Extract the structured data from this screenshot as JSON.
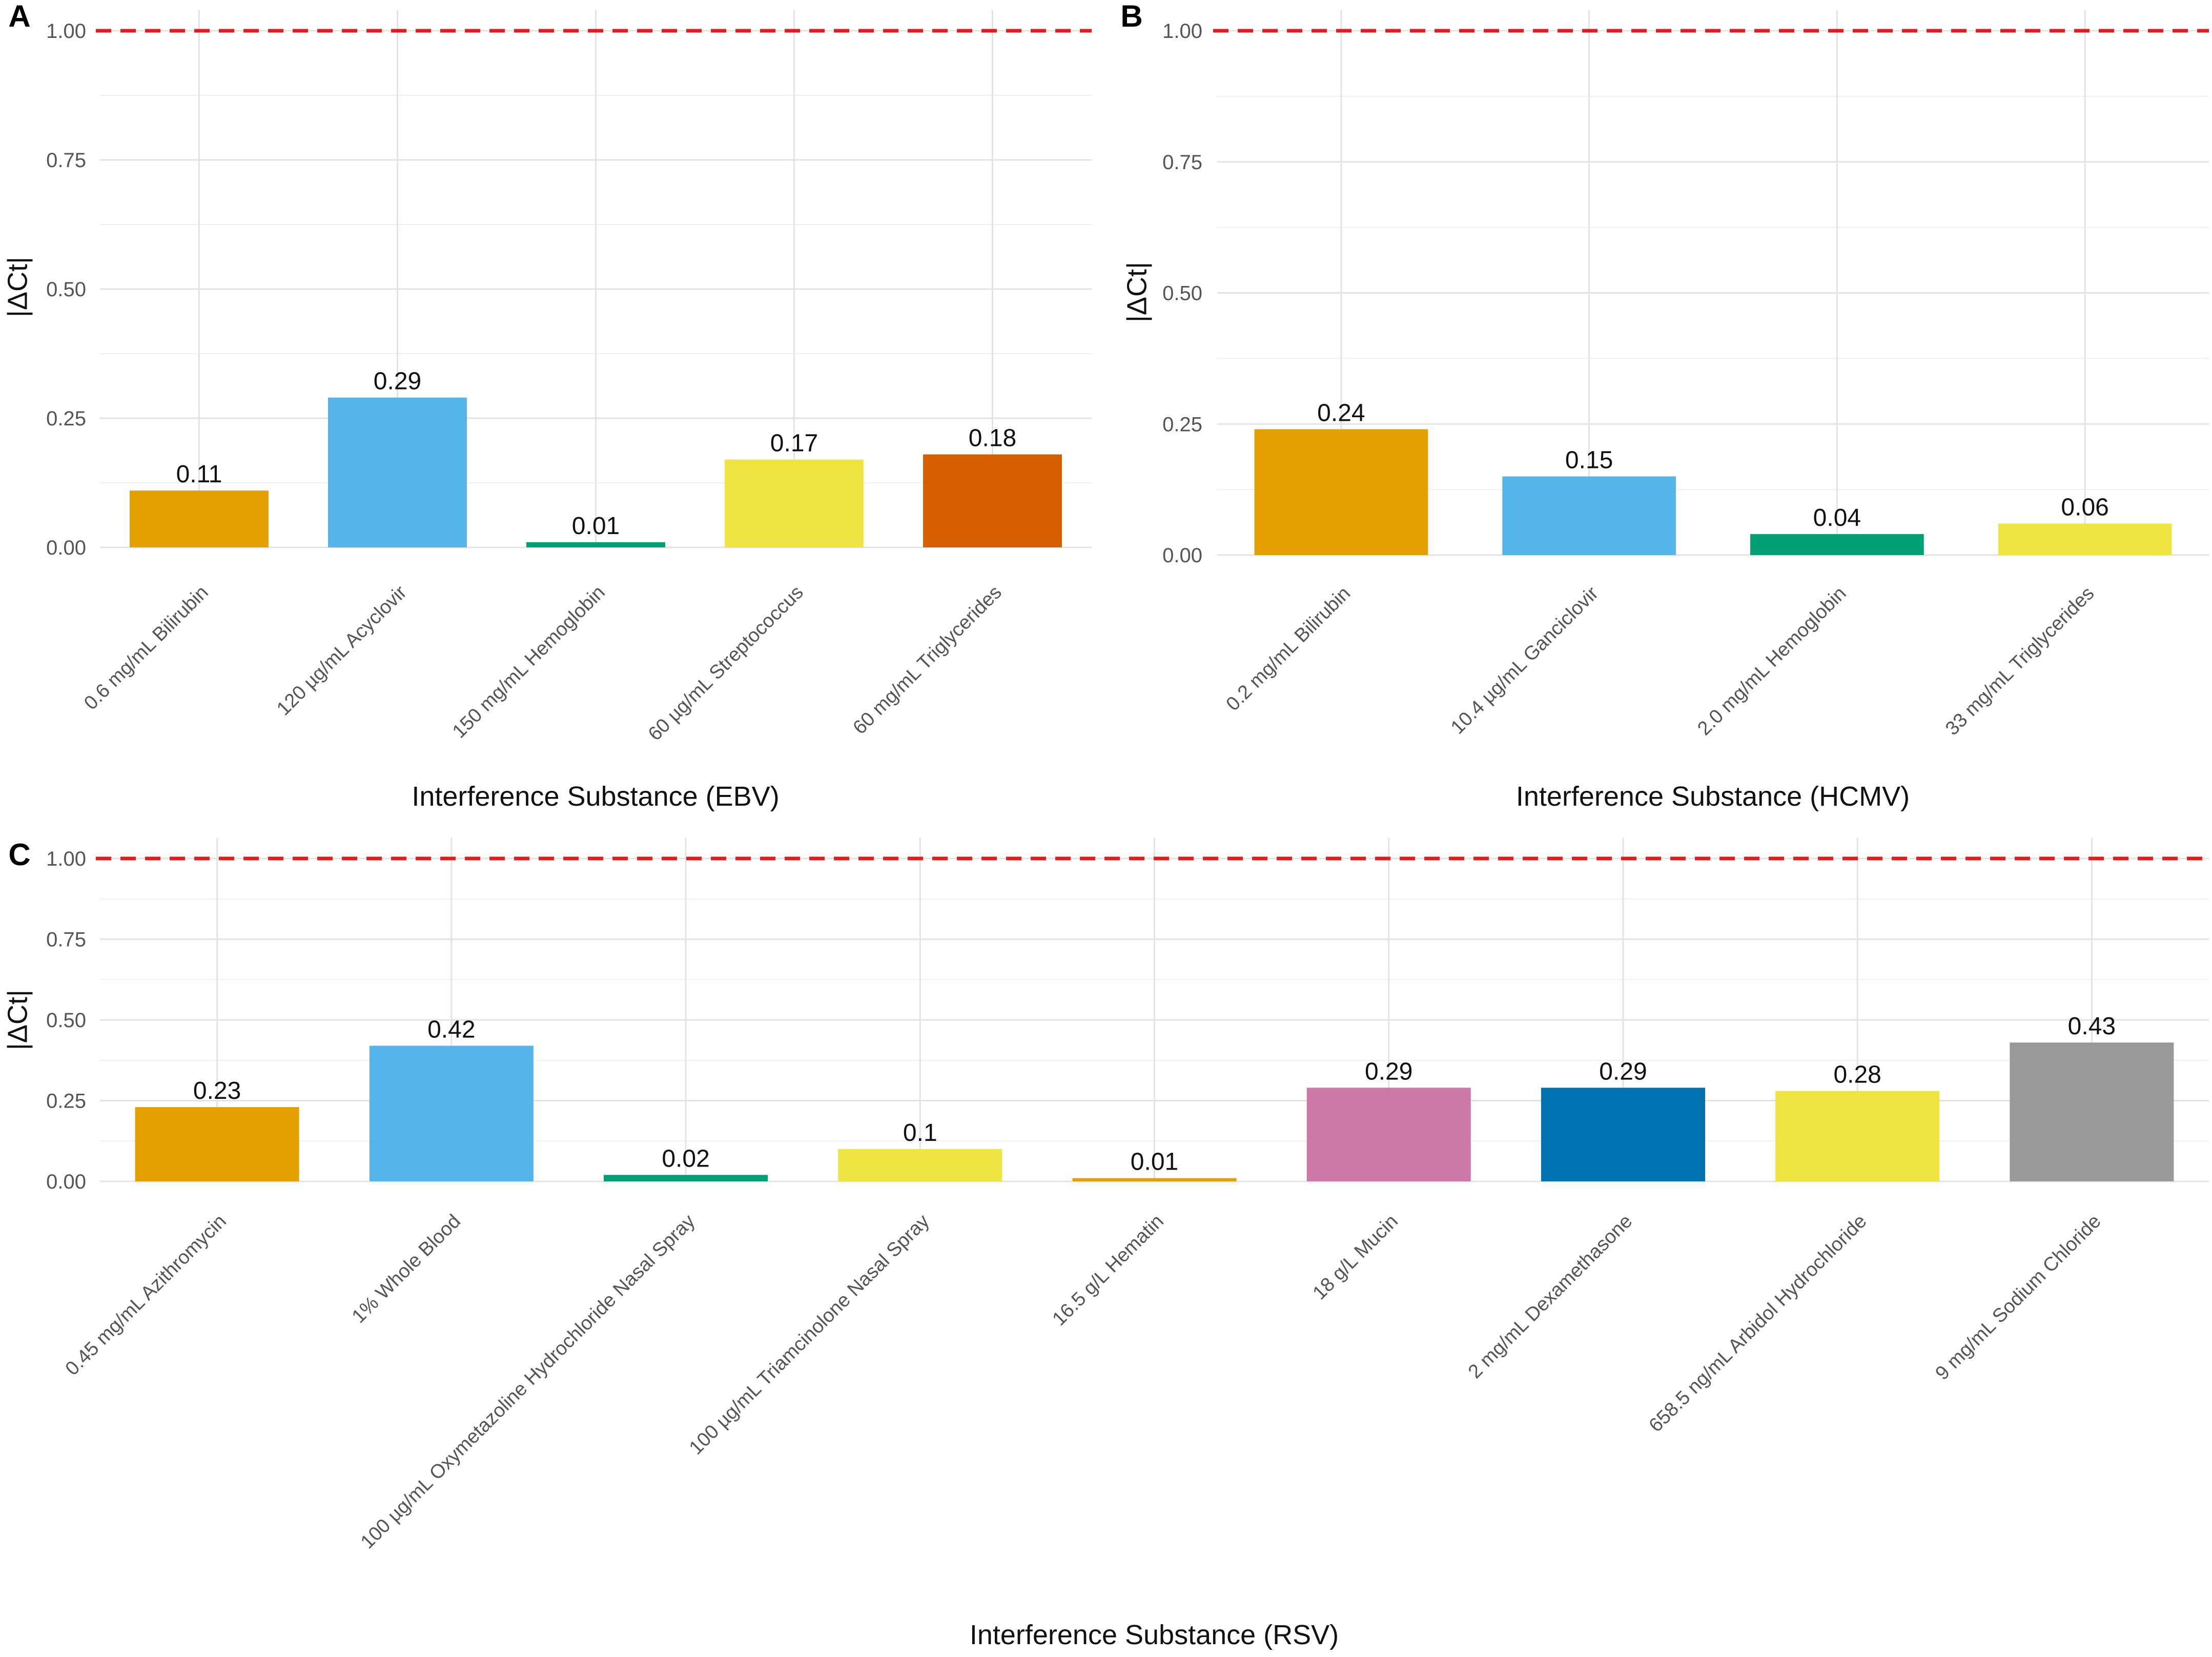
{
  "chart_data": [
    {
      "type": "bar",
      "panel_label": "A",
      "categories": [
        "0.6 mg/mL Bilirubin",
        "120 µg/mL Acyclovir",
        "150 mg/mL Hemoglobin",
        "60 µg/mL Streptococcus",
        "60 mg/mL Triglycerides"
      ],
      "values": [
        0.11,
        0.29,
        0.01,
        0.17,
        0.18
      ],
      "value_labels": [
        "0.11",
        "0.29",
        "0.01",
        "0.17",
        "0.18"
      ],
      "colors": [
        "#E69F00",
        "#56B4E9",
        "#009E73",
        "#F0E442",
        "#D55E00"
      ],
      "xlabel": "Interference Substance (EBV)",
      "ylabel": "|ΔCt|",
      "ylim": [
        0,
        1.0
      ],
      "yticks": [
        "0.00",
        "0.25",
        "0.50",
        "0.75",
        "1.00"
      ],
      "threshold": 1.0,
      "threshold_color": "#E41A1C",
      "grid": true
    },
    {
      "type": "bar",
      "panel_label": "B",
      "categories": [
        "0.2 mg/mL Bilirubin",
        "10.4 µg/mL Ganciclovir",
        "2.0 mg/mL Hemoglobin",
        "33 mg/mL Triglycerides"
      ],
      "values": [
        0.24,
        0.15,
        0.04,
        0.06
      ],
      "value_labels": [
        "0.24",
        "0.15",
        "0.04",
        "0.06"
      ],
      "colors": [
        "#E69F00",
        "#56B4E9",
        "#009E73",
        "#F0E442"
      ],
      "xlabel": "Interference Substance (HCMV)",
      "ylabel": "|ΔCt|",
      "ylim": [
        0,
        1.0
      ],
      "yticks": [
        "0.00",
        "0.25",
        "0.50",
        "0.75",
        "1.00"
      ],
      "threshold": 1.0,
      "threshold_color": "#E41A1C",
      "grid": true
    },
    {
      "type": "bar",
      "panel_label": "C",
      "categories": [
        "0.45 mg/mL Azithromycin",
        "1% Whole Blood",
        "100 µg/mL Oxymetazoline Hydrochloride Nasal Spray",
        "100 µg/mL Triamcinolone Nasal Spray",
        "16.5 g/L Hematin",
        "18 g/L Mucin",
        "2 mg/mL Dexamethasone",
        "658.5 ng/mL Arbidol Hydrochloride",
        "9 mg/mL Sodium Chloride"
      ],
      "values": [
        0.23,
        0.42,
        0.02,
        0.1,
        0.01,
        0.29,
        0.29,
        0.28,
        0.43
      ],
      "value_labels": [
        "0.23",
        "0.42",
        "0.02",
        "0.1",
        "0.01",
        "0.29",
        "0.29",
        "0.28",
        "0.43"
      ],
      "colors": [
        "#E69F00",
        "#56B4E9",
        "#009E73",
        "#F0E442",
        "#E69F00",
        "#CC79A7",
        "#0072B2",
        "#F0E442",
        "#999999"
      ],
      "xlabel": "Interference Substance (RSV)",
      "ylabel": "|ΔCt|",
      "ylim": [
        0,
        1.0
      ],
      "yticks": [
        "0.00",
        "0.25",
        "0.50",
        "0.75",
        "1.00"
      ],
      "threshold": 1.0,
      "threshold_color": "#E41A1C",
      "grid": true
    }
  ]
}
